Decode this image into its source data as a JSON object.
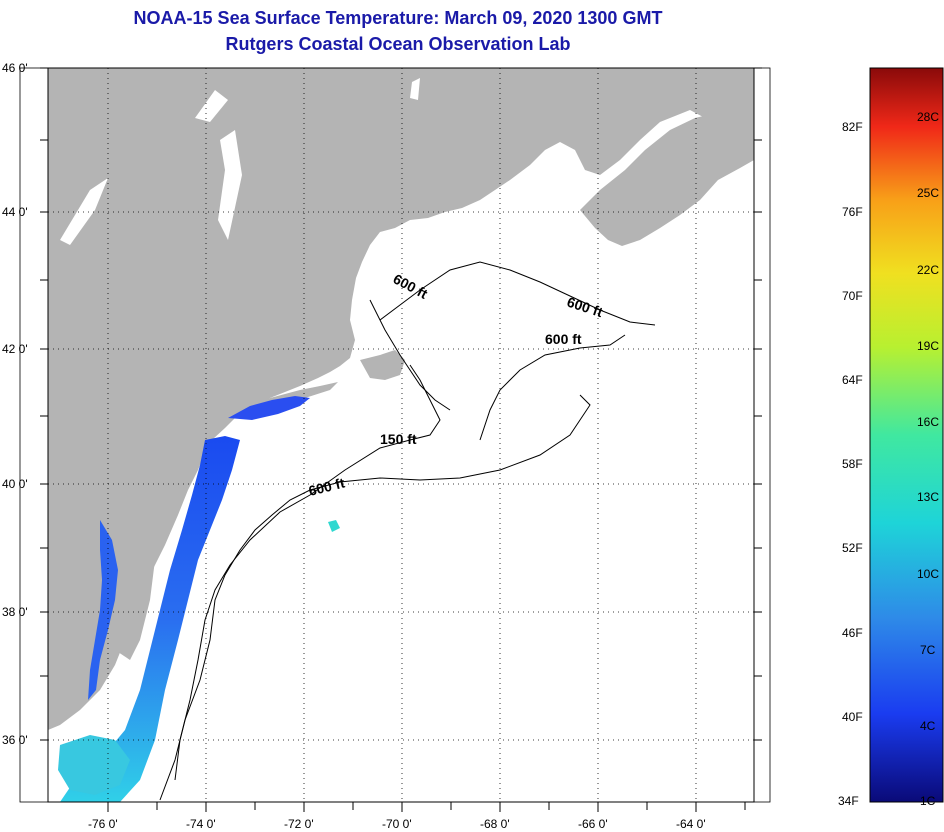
{
  "title": {
    "line1": "NOAA-15 Sea Surface Temperature:  March 09, 2020 1300 GMT",
    "line2": "Rutgers Coastal Ocean Observation Lab"
  },
  "axes": {
    "lat_labels": [
      "46 0'",
      "44 0'",
      "42 0'",
      "40 0'",
      "38 0'",
      "36 0'"
    ],
    "lon_labels": [
      "-76 0'",
      "-74 0'",
      "-72 0'",
      "-70 0'",
      "-68 0'",
      "-66 0'",
      "-64 0'"
    ]
  },
  "contours": {
    "label_600_a": "600 ft",
    "label_600_b": "600 ft",
    "label_600_c": "600 ft",
    "label_150": "150 ft",
    "label_600_d": "600 ft"
  },
  "colorbar": {
    "fahrenheit": [
      "82F",
      "76F",
      "70F",
      "64F",
      "58F",
      "52F",
      "46F",
      "40F",
      "34F"
    ],
    "celsius": [
      "28C",
      "25C",
      "22C",
      "19C",
      "16C",
      "13C",
      "10C",
      "7C",
      "4C",
      "1C"
    ]
  },
  "colors": {
    "land": "#b4b4b4",
    "ocean_missing": "#ffffff",
    "title": "#1a1aa8"
  }
}
